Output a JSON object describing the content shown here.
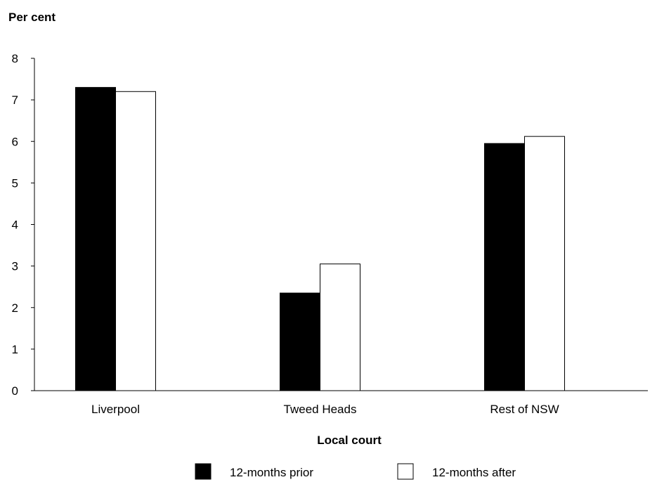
{
  "chart_data": {
    "type": "bar",
    "ylabel": "Per cent",
    "xlabel": "Local court",
    "categories": [
      "Liverpool",
      "Tweed Heads",
      "Rest of NSW"
    ],
    "ylim": [
      0,
      8
    ],
    "yticks": [
      "0",
      "1",
      "2",
      "3",
      "4",
      "5",
      "6",
      "7",
      "8"
    ],
    "series": [
      {
        "name": "12-months prior",
        "values": [
          7.3,
          2.35,
          5.95
        ],
        "color": "#000000"
      },
      {
        "name": "12-months after",
        "values": [
          7.2,
          3.05,
          6.12
        ],
        "color": "#ffffff"
      }
    ],
    "grid": false,
    "legend_placement": "bottom-center"
  }
}
